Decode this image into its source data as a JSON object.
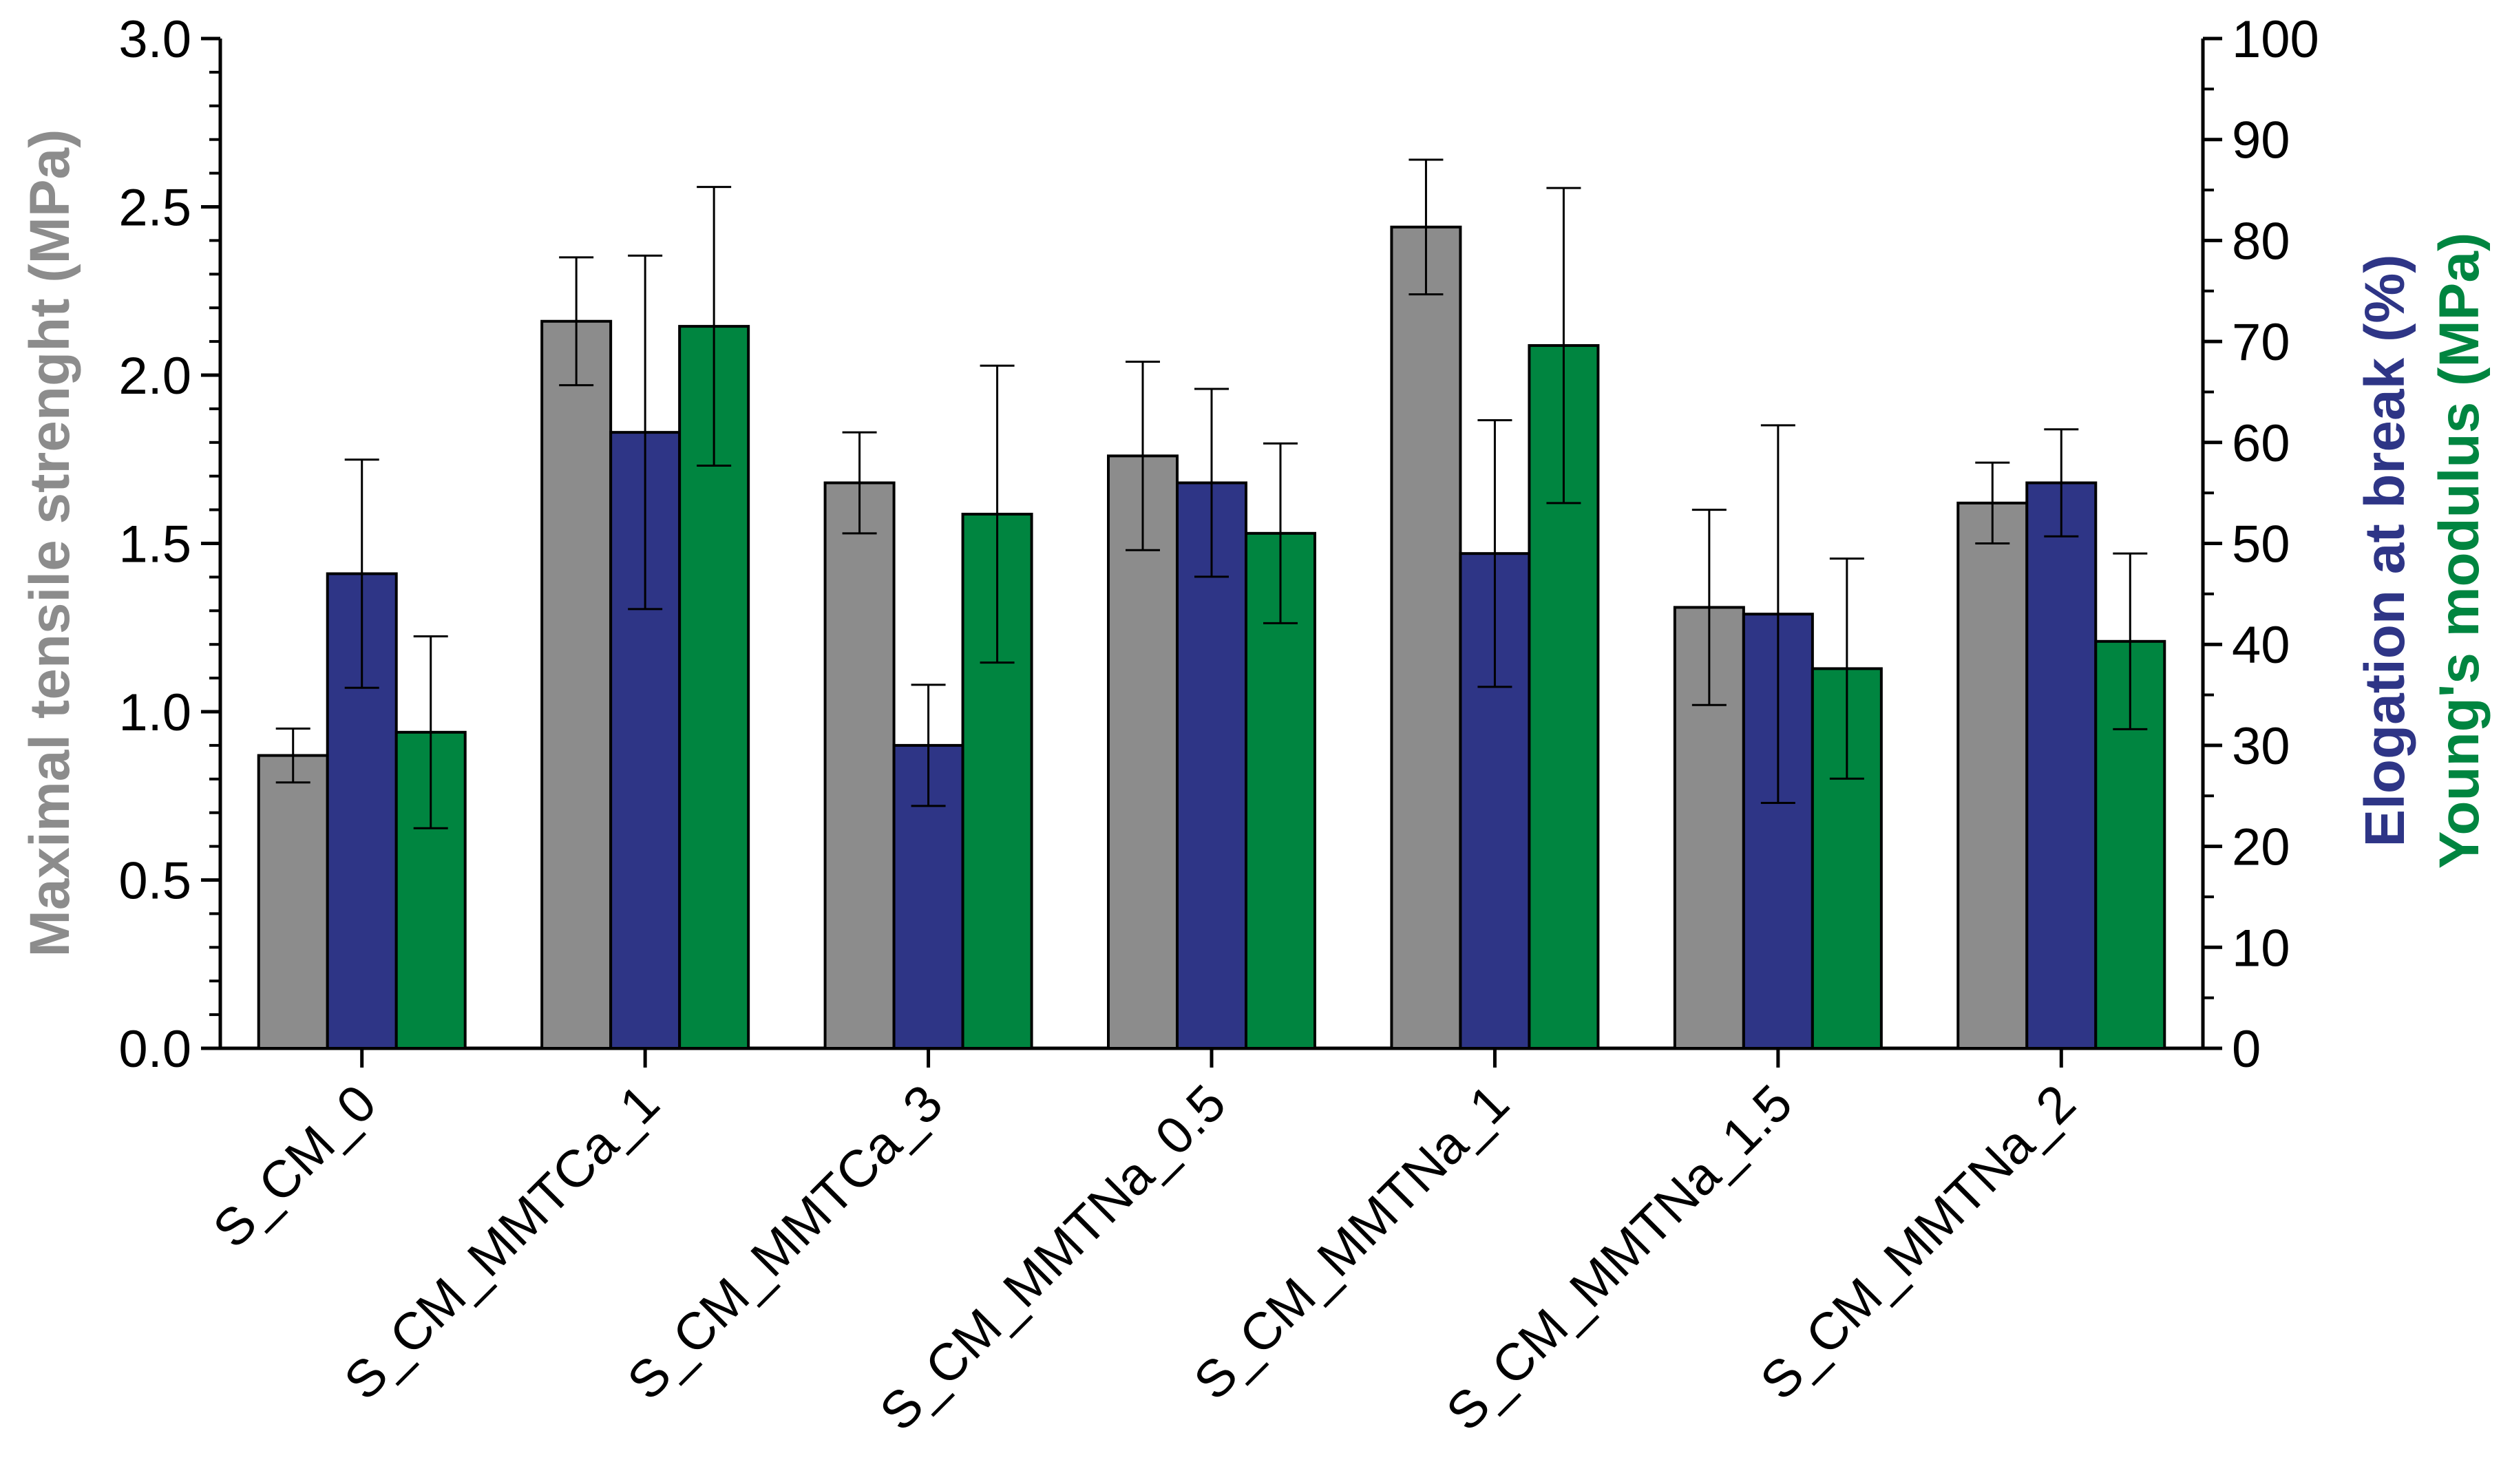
{
  "chart_data": {
    "type": "bar",
    "categories": [
      "S_CM_0",
      "S_CM_MMTCa_1",
      "S_CM_MMTCa_3",
      "S_CM_MMTNa_0.5",
      "S_CM_MMTNa_1",
      "S_CM_MMTNa_1.5",
      "S_CM_MMTNa_2"
    ],
    "left_axis": {
      "label": "Maximal tensile strenght (MPa)",
      "range": [
        0,
        3.0
      ],
      "ticks": [
        "0.0",
        "0.5",
        "1.0",
        "1.5",
        "2.0",
        "2.5",
        "3.0"
      ],
      "color": "#8c8c8c"
    },
    "right_axis": {
      "label_1": "Elogation at break (%)",
      "label_2": "Young's modulus (MPa)",
      "label_1_color": "#2e3586",
      "label_2_color": "#008540",
      "range": [
        0,
        100
      ],
      "ticks": [
        "0",
        "10",
        "20",
        "30",
        "40",
        "50",
        "60",
        "70",
        "80",
        "90",
        "100"
      ]
    },
    "series": [
      {
        "name": "Maximal tensile strenght (MPa)",
        "axis": "left",
        "color": "#8c8c8c",
        "values": [
          0.87,
          2.16,
          1.68,
          1.76,
          2.44,
          1.31,
          1.62
        ],
        "errors": [
          0.08,
          0.19,
          0.15,
          0.28,
          0.2,
          0.29,
          0.12
        ]
      },
      {
        "name": "Elogation at break (%)",
        "axis": "right",
        "color": "#2e3586",
        "values": [
          47,
          61,
          30,
          56,
          49,
          43,
          56
        ],
        "errors": [
          11.3,
          17.5,
          6.0,
          9.3,
          13.2,
          18.7,
          5.3
        ]
      },
      {
        "name": "Young's modulus (MPa)",
        "axis": "right",
        "color": "#008540",
        "values": [
          31.3,
          71.5,
          52.9,
          51.0,
          69.6,
          37.6,
          40.3
        ],
        "errors": [
          9.5,
          13.8,
          14.7,
          8.9,
          15.6,
          10.9,
          8.7
        ]
      }
    ]
  }
}
